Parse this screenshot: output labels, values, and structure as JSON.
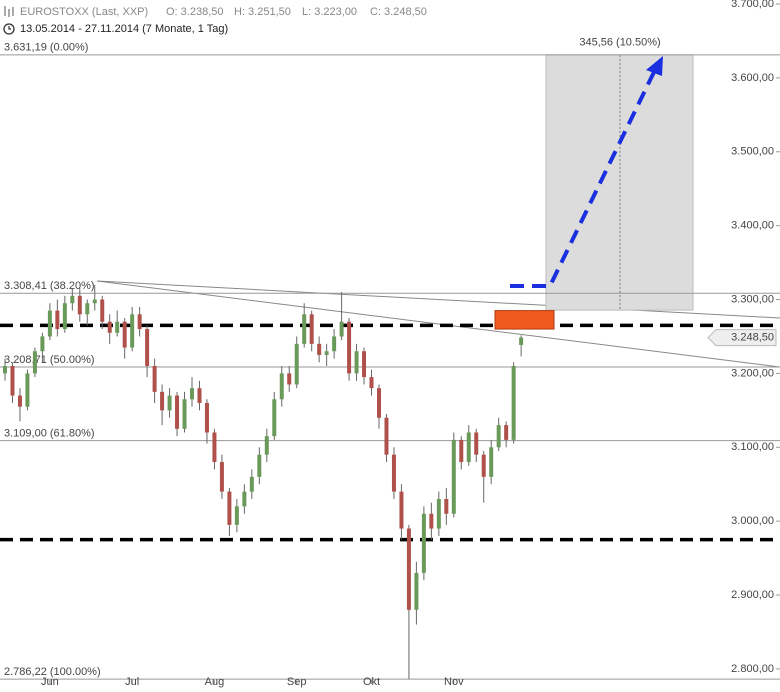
{
  "header": {
    "instrument": "EUROSTOXX (Last, XXP)",
    "open": "O: 3.238,50",
    "high": "H: 3.251,50",
    "low": "L: 3.223,00",
    "close": "C: 3.248,50",
    "range": "13.05.2014 - 27.11.2014 (7 Monate, 1 Tag)"
  },
  "chart_data": {
    "type": "candlestick",
    "ylim": [
      2785,
      3700
    ],
    "yticks": [
      {
        "value": 2800,
        "label": "2.800,00"
      },
      {
        "value": 2900,
        "label": "2.900,00"
      },
      {
        "value": 3000,
        "label": "3.000,00"
      },
      {
        "value": 3100,
        "label": "3.100,00"
      },
      {
        "value": 3200,
        "label": "3.200,00"
      },
      {
        "value": 3300,
        "label": "3.300,00"
      },
      {
        "value": 3400,
        "label": "3.400,00"
      },
      {
        "value": 3500,
        "label": "3.500,00"
      },
      {
        "value": 3600,
        "label": "3.600,00"
      },
      {
        "value": 3700,
        "label": "3.700,00"
      }
    ],
    "up_color": "#6a9a5a",
    "down_color": "#b0504a",
    "categories": [
      null,
      null,
      null,
      null,
      null,
      null,
      "Jun",
      null,
      null,
      null,
      null,
      null,
      null,
      null,
      null,
      null,
      null,
      "Jul",
      null,
      null,
      null,
      null,
      null,
      null,
      null,
      null,
      null,
      null,
      "Aug",
      null,
      null,
      null,
      null,
      null,
      null,
      null,
      null,
      null,
      null,
      "Sep",
      null,
      null,
      null,
      null,
      null,
      null,
      null,
      null,
      null,
      "Okt",
      null,
      null,
      null,
      null,
      null,
      null,
      null,
      null,
      null,
      null,
      "Nov",
      null,
      null,
      null,
      null,
      null,
      null,
      null,
      null,
      null
    ],
    "candles": [
      [
        3200,
        3220,
        3190,
        3210
      ],
      [
        3210,
        3215,
        3160,
        3170
      ],
      [
        3170,
        3180,
        3135,
        3155
      ],
      [
        3155,
        3205,
        3150,
        3200
      ],
      [
        3200,
        3235,
        3195,
        3230
      ],
      [
        3230,
        3255,
        3215,
        3250
      ],
      [
        3250,
        3295,
        3245,
        3285
      ],
      [
        3285,
        3300,
        3250,
        3260
      ],
      [
        3260,
        3305,
        3255,
        3295
      ],
      [
        3295,
        3315,
        3285,
        3305
      ],
      [
        3305,
        3315,
        3270,
        3280
      ],
      [
        3280,
        3300,
        3265,
        3295
      ],
      [
        3295,
        3320,
        3285,
        3300
      ],
      [
        3300,
        3305,
        3260,
        3270
      ],
      [
        3270,
        3280,
        3240,
        3255
      ],
      [
        3255,
        3285,
        3250,
        3270
      ],
      [
        3270,
        3275,
        3220,
        3235
      ],
      [
        3235,
        3290,
        3230,
        3280
      ],
      [
        3280,
        3290,
        3250,
        3260
      ],
      [
        3260,
        3265,
        3195,
        3210
      ],
      [
        3210,
        3220,
        3160,
        3175
      ],
      [
        3175,
        3185,
        3130,
        3150
      ],
      [
        3150,
        3180,
        3140,
        3170
      ],
      [
        3170,
        3175,
        3115,
        3125
      ],
      [
        3125,
        3175,
        3120,
        3165
      ],
      [
        3165,
        3195,
        3155,
        3180
      ],
      [
        3180,
        3190,
        3150,
        3160
      ],
      [
        3160,
        3165,
        3105,
        3120
      ],
      [
        3120,
        3125,
        3070,
        3080
      ],
      [
        3080,
        3090,
        3030,
        3040
      ],
      [
        3040,
        3045,
        2980,
        2995
      ],
      [
        2995,
        3030,
        2985,
        3020
      ],
      [
        3020,
        3050,
        3010,
        3040
      ],
      [
        3040,
        3070,
        3030,
        3060
      ],
      [
        3060,
        3100,
        3050,
        3090
      ],
      [
        3090,
        3125,
        3080,
        3115
      ],
      [
        3115,
        3175,
        3110,
        3165
      ],
      [
        3165,
        3210,
        3155,
        3200
      ],
      [
        3200,
        3210,
        3175,
        3185
      ],
      [
        3185,
        3250,
        3180,
        3240
      ],
      [
        3240,
        3295,
        3235,
        3280
      ],
      [
        3280,
        3285,
        3230,
        3240
      ],
      [
        3240,
        3250,
        3215,
        3225
      ],
      [
        3225,
        3240,
        3210,
        3230
      ],
      [
        3230,
        3260,
        3220,
        3250
      ],
      [
        3250,
        3310,
        3245,
        3270
      ],
      [
        3270,
        3275,
        3190,
        3200
      ],
      [
        3200,
        3240,
        3190,
        3230
      ],
      [
        3230,
        3235,
        3185,
        3195
      ],
      [
        3195,
        3205,
        3170,
        3180
      ],
      [
        3180,
        3185,
        3125,
        3140
      ],
      [
        3140,
        3145,
        3080,
        3090
      ],
      [
        3090,
        3100,
        3030,
        3040
      ],
      [
        3040,
        3050,
        2975,
        2990
      ],
      [
        2990,
        2995,
        2786.22,
        2880
      ],
      [
        2880,
        2945,
        2860,
        2930
      ],
      [
        2930,
        3020,
        2920,
        3010
      ],
      [
        3010,
        3025,
        2975,
        2990
      ],
      [
        2990,
        3040,
        2980,
        3030
      ],
      [
        3030,
        3045,
        2995,
        3010
      ],
      [
        3010,
        3120,
        3005,
        3110
      ],
      [
        3110,
        3115,
        3070,
        3080
      ],
      [
        3080,
        3130,
        3075,
        3120
      ],
      [
        3120,
        3125,
        3080,
        3090
      ],
      [
        3090,
        3095,
        3025,
        3060
      ],
      [
        3060,
        3110,
        3050,
        3100
      ],
      [
        3100,
        3140,
        3095,
        3130
      ],
      [
        3130,
        3135,
        3100,
        3110
      ],
      [
        3110,
        3215,
        3105,
        3210
      ],
      [
        3238.5,
        3251.5,
        3223,
        3248.5
      ]
    ],
    "levels": [
      {
        "value": 3631.19,
        "label": "3.631,19 (0.00%)"
      },
      {
        "value": 3308.41,
        "label": "3.308,41 (38.20%)"
      },
      {
        "value": 3208.71,
        "label": "3.208,71 (50.00%)"
      },
      {
        "value": 3109.0,
        "label": "3.109,00 (61.80%)"
      },
      {
        "value": 2786.22,
        "label": "2.786,22 (100.00%)"
      }
    ],
    "dashed_levels": [
      3265,
      2975
    ],
    "entry_zone": [
      3260,
      3285
    ],
    "projection": {
      "from": 3285.63,
      "to": 3631.19,
      "label": "345,56 (10.50%)"
    },
    "last_price": {
      "value": 3248.5,
      "label": "3.248,50"
    }
  }
}
